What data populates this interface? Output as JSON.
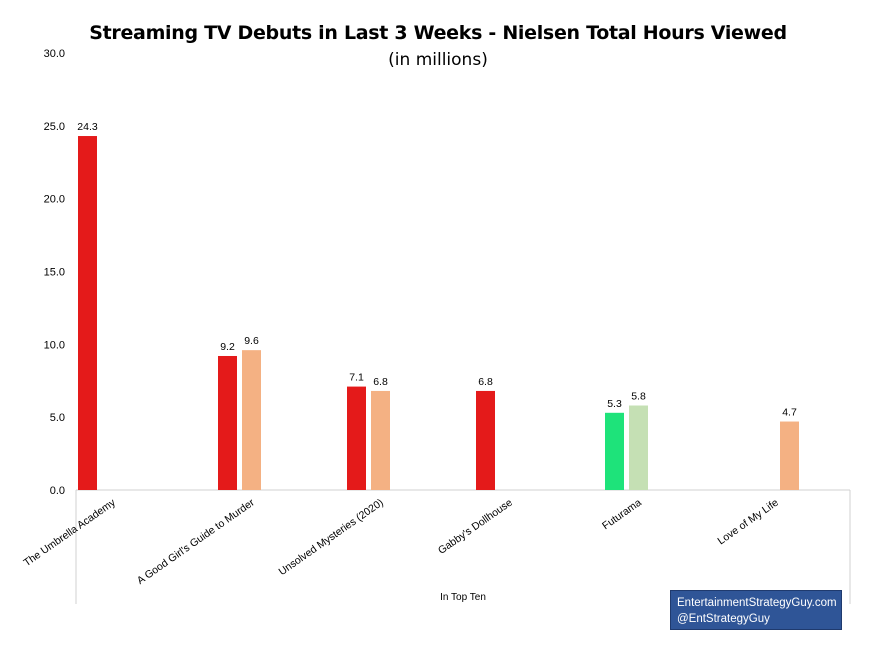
{
  "chart_data": {
    "type": "bar",
    "title": "Streaming TV Debuts in Last 3 Weeks - Nielsen Total Hours Viewed",
    "subtitle": "(in millions)",
    "categories": [
      "The Umbrella Academy",
      "A Good Girl's Guide to Murder",
      "Unsolved Mysteries (2020)",
      "Gabby's Dollhouse",
      "Futurama",
      "Love of My Life"
    ],
    "bars": [
      {
        "category": "The Umbrella Academy",
        "value": 24.3,
        "color": "#e41a1a"
      },
      {
        "category": "A Good Girl's Guide to Murder",
        "value": 9.2,
        "color": "#e41a1a"
      },
      {
        "category": "A Good Girl's Guide to Murder",
        "value": 9.6,
        "color": "#f4b183"
      },
      {
        "category": "Unsolved Mysteries (2020)",
        "value": 7.1,
        "color": "#e41a1a"
      },
      {
        "category": "Unsolved Mysteries (2020)",
        "value": 6.8,
        "color": "#f4b183"
      },
      {
        "category": "Gabby's Dollhouse",
        "value": 6.8,
        "color": "#e41a1a"
      },
      {
        "category": "Futurama",
        "value": 5.3,
        "color": "#1ee37a"
      },
      {
        "category": "Futurama",
        "value": 5.8,
        "color": "#c5e0b4"
      },
      {
        "category": "Love of My Life",
        "value": 4.7,
        "color": "#f4b183"
      }
    ],
    "ylim": [
      0,
      30
    ],
    "yticks": [
      "0.0",
      "5.0",
      "10.0",
      "15.0",
      "20.0",
      "25.0",
      "30.0"
    ],
    "xlabel": "In Top Ten",
    "ylabel": "",
    "grid": false,
    "legend": "none"
  },
  "branding": {
    "line1": "EntertainmentStrategyGuy.com",
    "line2": "@EntStrategyGuy"
  }
}
